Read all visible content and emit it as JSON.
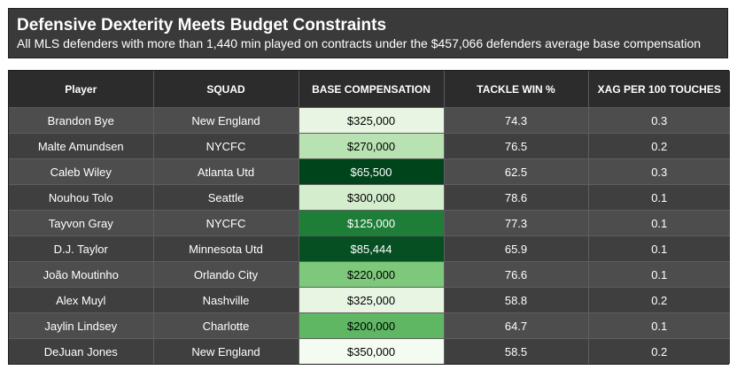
{
  "title": "Defensive Dexterity Meets Budget Constraints",
  "subtitle": "All MLS defenders with more than 1,440 min played on contracts under the $457,066 defenders average base compensation",
  "columns": [
    "Player",
    "SQUAD",
    "BASE COMPENSATION",
    "TACKLE WIN %",
    "XAG PER 100 TOUCHES"
  ],
  "colors": {
    "header_bg": "#2c2c2c",
    "row_light": "#4d4d4d",
    "row_dark": "#3f3f3f",
    "comp_scale": [
      "#f1faee",
      "#00441b"
    ]
  },
  "chart_data": {
    "type": "table",
    "columns": [
      "Player",
      "SQUAD",
      "BASE COMPENSATION",
      "TACKLE WIN %",
      "XAG PER 100 TOUCHES"
    ],
    "rows": [
      {
        "player": "Brandon Bye",
        "squad": "New England",
        "compensation": "$325,000",
        "comp_value": 325000,
        "comp_color": "#e8f5e3",
        "tackle_win": "74.3",
        "xag": "0.3"
      },
      {
        "player": "Malte Amundsen",
        "squad": "NYCFC",
        "compensation": "$270,000",
        "comp_value": 270000,
        "comp_color": "#b8e2b1",
        "tackle_win": "76.5",
        "xag": "0.2"
      },
      {
        "player": "Caleb Wiley",
        "squad": "Atlanta Utd",
        "compensation": "$65,500",
        "comp_value": 65500,
        "comp_color": "#00441b",
        "tackle_win": "62.5",
        "xag": "0.3"
      },
      {
        "player": "Nouhou Tolo",
        "squad": "Seattle",
        "compensation": "$300,000",
        "comp_value": 300000,
        "comp_color": "#d4eecd",
        "tackle_win": "78.6",
        "xag": "0.1"
      },
      {
        "player": "Tayvon Gray",
        "squad": "NYCFC",
        "compensation": "$125,000",
        "comp_value": 125000,
        "comp_color": "#1e7e37",
        "tackle_win": "77.3",
        "xag": "0.1"
      },
      {
        "player": "D.J. Taylor",
        "squad": "Minnesota Utd",
        "compensation": "$85,444",
        "comp_value": 85444,
        "comp_color": "#064f22",
        "tackle_win": "65.9",
        "xag": "0.1"
      },
      {
        "player": "João Moutinho",
        "squad": "Orlando City",
        "compensation": "$220,000",
        "comp_value": 220000,
        "comp_color": "#7dc87a",
        "tackle_win": "76.6",
        "xag": "0.1"
      },
      {
        "player": "Alex Muyl",
        "squad": "Nashville",
        "compensation": "$325,000",
        "comp_value": 325000,
        "comp_color": "#e8f5e3",
        "tackle_win": "58.8",
        "xag": "0.2"
      },
      {
        "player": "Jaylin Lindsey",
        "squad": "Charlotte",
        "compensation": "$200,000",
        "comp_value": 200000,
        "comp_color": "#5fb764",
        "tackle_win": "64.7",
        "xag": "0.1"
      },
      {
        "player": "DeJuan Jones",
        "squad": "New England",
        "compensation": "$350,000",
        "comp_value": 350000,
        "comp_color": "#f4fbf1",
        "tackle_win": "58.5",
        "xag": "0.2"
      }
    ]
  }
}
